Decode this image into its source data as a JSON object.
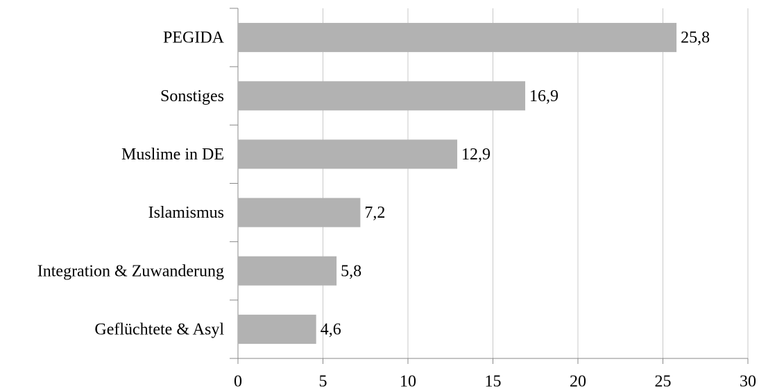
{
  "chart_data": {
    "type": "barh",
    "categories": [
      "PEGIDA",
      "Sonstiges",
      "Muslime in DE",
      "Islamismus",
      "Integration & Zuwanderung",
      "Geflüchtete & Asyl"
    ],
    "values": [
      25.8,
      16.9,
      12.9,
      7.2,
      5.8,
      4.6
    ],
    "value_labels": [
      "25,8",
      "16,9",
      "12,9",
      "7,2",
      "5,8",
      "4,6"
    ],
    "color": "#b2b2b2",
    "xlim": [
      0,
      30
    ],
    "xticks": [
      0,
      5,
      10,
      15,
      20,
      25,
      30
    ],
    "grid": true
  }
}
